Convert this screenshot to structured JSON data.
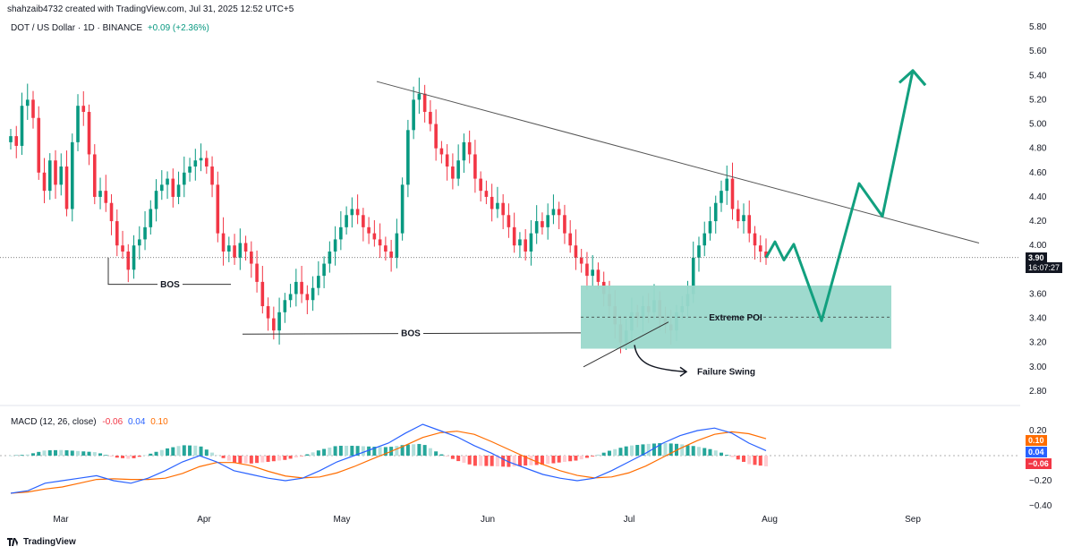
{
  "header": {
    "author_line": "shahzaib4732 created with TradingView.com, Jul 31, 2025 12:52 UTC+5",
    "symbol": "DOT / US Dollar · 1D · BINANCE",
    "change": "+0.09 (+2.36%)"
  },
  "price_axis": {
    "ticks": [
      "5.80",
      "5.60",
      "5.40",
      "5.20",
      "5.00",
      "4.80",
      "4.60",
      "4.40",
      "4.20",
      "4.00",
      "3.60",
      "3.40",
      "3.20",
      "3.00",
      "2.80"
    ],
    "current_price": "3.90",
    "countdown": "16:07:27"
  },
  "time_axis": {
    "ticks": [
      "Mar",
      "Apr",
      "May",
      "Jun",
      "Jul",
      "Aug",
      "Sep"
    ]
  },
  "annotations": {
    "bos_upper": "BOS",
    "bos_lower": "BOS",
    "poi": "Extreme POI",
    "failure": "Failure Swing"
  },
  "macd": {
    "legend_name": "MACD (12, 26, close)",
    "legend_hist": "-0.06",
    "legend_macd": "0.04",
    "legend_signal": "0.10",
    "ticks": [
      "0.20",
      "−0.20",
      "−0.40"
    ],
    "tag_signal": "0.10",
    "tag_macd": "0.04",
    "tag_hist": "−0.06"
  },
  "brand": {
    "logo_text": "TradingView"
  },
  "colors": {
    "up": "#089981",
    "down": "#f23645",
    "arrow": "#12a07f",
    "macd": "#2962ff",
    "signal": "#ff6d00",
    "poi": "#9ad8cb"
  },
  "chart_data": {
    "type": "candlestick",
    "symbol": "DOTUSD",
    "timeframe": "1D",
    "ylim": [
      2.7,
      5.85
    ],
    "price_close_series_approx": [
      4.9,
      4.82,
      5.15,
      5.2,
      5.05,
      4.6,
      4.45,
      4.7,
      4.5,
      4.65,
      4.3,
      4.85,
      5.15,
      5.1,
      4.75,
      4.4,
      4.45,
      4.35,
      4.2,
      4.0,
      3.95,
      3.8,
      4.0,
      4.05,
      4.15,
      4.3,
      4.45,
      4.5,
      4.55,
      4.4,
      4.5,
      4.6,
      4.65,
      4.7,
      4.72,
      4.65,
      4.5,
      4.1,
      3.95,
      4.0,
      3.9,
      4.02,
      3.95,
      3.85,
      3.7,
      3.5,
      3.4,
      3.3,
      3.45,
      3.55,
      3.6,
      3.7,
      3.6,
      3.55,
      3.65,
      3.75,
      3.85,
      3.95,
      4.05,
      4.15,
      4.25,
      4.3,
      4.25,
      4.15,
      4.1,
      4.05,
      4.0,
      3.95,
      3.9,
      4.1,
      4.5,
      4.95,
      5.2,
      5.25,
      5.1,
      5.0,
      4.8,
      4.75,
      4.65,
      4.55,
      4.7,
      4.85,
      4.75,
      4.55,
      4.45,
      4.4,
      4.3,
      4.35,
      4.25,
      4.15,
      4.0,
      4.05,
      3.95,
      4.1,
      4.2,
      4.15,
      4.25,
      4.3,
      4.25,
      4.1,
      4.0,
      3.9,
      3.85,
      3.75,
      3.8,
      3.7,
      3.6,
      3.5,
      3.35,
      3.2,
      3.3,
      3.45,
      3.4,
      3.5,
      3.45,
      3.55,
      3.4,
      3.35,
      3.3,
      3.45,
      3.5,
      3.6,
      3.9,
      4.0,
      4.1,
      4.2,
      4.35,
      4.45,
      4.55,
      4.3,
      4.2,
      4.25,
      4.1,
      4.0,
      3.95,
      3.9
    ],
    "macd_values_approx": [
      -0.3,
      -0.28,
      -0.22,
      -0.2,
      -0.18,
      -0.16,
      -0.2,
      -0.22,
      -0.18,
      -0.12,
      -0.05,
      0.0,
      -0.05,
      -0.12,
      -0.15,
      -0.18,
      -0.2,
      -0.18,
      -0.12,
      -0.05,
      0.0,
      0.05,
      0.1,
      0.18,
      0.25,
      0.2,
      0.15,
      0.08,
      0.02,
      -0.05,
      -0.1,
      -0.15,
      -0.18,
      -0.2,
      -0.18,
      -0.12,
      -0.05,
      0.02,
      0.1,
      0.16,
      0.2,
      0.22,
      0.18,
      0.1,
      0.04
    ]
  }
}
